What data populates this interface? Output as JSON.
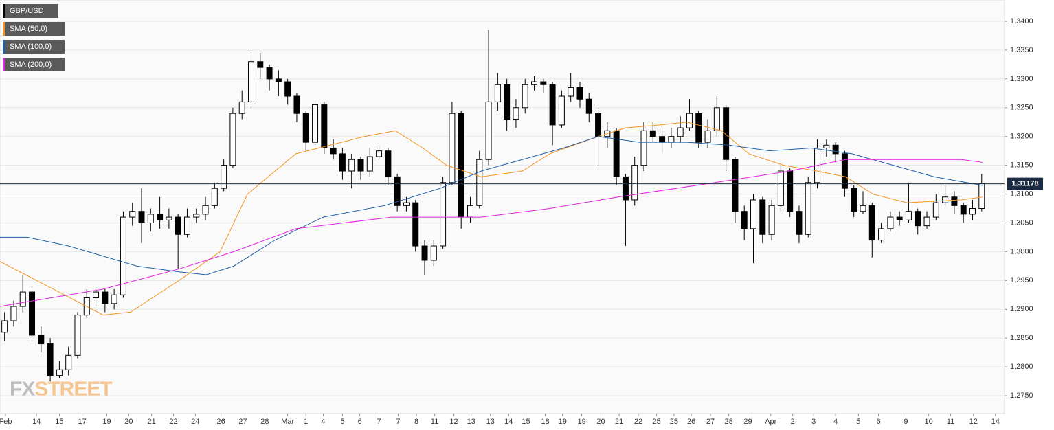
{
  "chart_data": {
    "type": "candlestick",
    "symbol": "GBP/USD",
    "symbol_color": "#000000",
    "open": [
      1.286,
      1.288,
      1.2905,
      1.293,
      1.2855,
      1.284,
      1.2785,
      1.2795,
      1.282,
      1.289,
      1.292,
      1.293,
      1.291,
      1.2925,
      1.306,
      1.307,
      1.305,
      1.3065,
      1.3055,
      1.306,
      1.303,
      1.306,
      1.3065,
      1.308,
      1.311,
      1.315,
      1.324,
      1.326,
      1.333,
      1.332,
      1.33,
      1.3295,
      1.327,
      1.324,
      1.319,
      1.3255,
      1.318,
      1.317,
      1.314,
      1.316,
      1.314,
      1.3165,
      1.3175,
      1.313,
      1.308,
      1.3085,
      1.301,
      1.2985,
      1.301,
      1.312,
      1.324,
      1.306,
      1.308,
      1.316,
      1.326,
      1.329,
      1.323,
      1.325,
      1.329,
      1.3295,
      1.329,
      1.322,
      1.327,
      1.3285,
      1.3265,
      1.324,
      1.32,
      1.321,
      1.313,
      1.309,
      1.315,
      1.321,
      1.32,
      1.319,
      1.32,
      1.3215,
      1.324,
      1.319,
      1.321,
      1.325,
      1.316,
      1.307,
      1.304,
      1.309,
      1.303,
      1.308,
      1.314,
      1.307,
      1.303,
      1.312,
      1.318,
      1.3185,
      1.317,
      1.311,
      1.307,
      1.308,
      1.302,
      1.304,
      1.306,
      1.3055,
      1.307,
      1.3045,
      1.306,
      1.3085,
      1.3095,
      1.308,
      1.3065,
      1.3075
    ],
    "high": [
      1.2895,
      1.2915,
      1.296,
      1.294,
      1.287,
      1.285,
      1.281,
      1.2835,
      1.2895,
      1.2935,
      1.294,
      1.2935,
      1.2935,
      1.307,
      1.3085,
      1.311,
      1.3075,
      1.3095,
      1.3075,
      1.3065,
      1.3075,
      1.3075,
      1.3095,
      1.312,
      1.316,
      1.325,
      1.328,
      1.335,
      1.3345,
      1.3325,
      1.3315,
      1.33,
      1.3275,
      1.3245,
      1.3265,
      1.326,
      1.3195,
      1.318,
      1.317,
      1.3165,
      1.318,
      1.3185,
      1.318,
      1.3135,
      1.3095,
      1.309,
      1.302,
      1.302,
      1.313,
      1.326,
      1.3245,
      1.3095,
      1.3175,
      1.3385,
      1.331,
      1.33,
      1.3265,
      1.33,
      1.3305,
      1.33,
      1.3295,
      1.328,
      1.331,
      1.3295,
      1.3275,
      1.325,
      1.3225,
      1.3215,
      1.3135,
      1.3165,
      1.3225,
      1.3225,
      1.321,
      1.3215,
      1.3235,
      1.3265,
      1.3245,
      1.323,
      1.327,
      1.3255,
      1.3165,
      1.308,
      1.31,
      1.3095,
      1.309,
      1.315,
      1.3145,
      1.308,
      1.313,
      1.3195,
      1.3195,
      1.319,
      1.3175,
      1.3115,
      1.3105,
      1.3085,
      1.305,
      1.307,
      1.307,
      1.312,
      1.3075,
      1.307,
      1.31,
      1.3115,
      1.3105,
      1.3085,
      1.309,
      1.3135
    ],
    "low": [
      1.2845,
      1.287,
      1.2895,
      1.2845,
      1.2825,
      1.2775,
      1.278,
      1.2785,
      1.2815,
      1.2885,
      1.2905,
      1.2895,
      1.29,
      1.292,
      1.3045,
      1.3015,
      1.3035,
      1.304,
      1.304,
      1.297,
      1.3025,
      1.305,
      1.3055,
      1.3075,
      1.3105,
      1.3145,
      1.323,
      1.3255,
      1.33,
      1.328,
      1.327,
      1.3255,
      1.3225,
      1.3175,
      1.3185,
      1.317,
      1.316,
      1.3125,
      1.311,
      1.3125,
      1.313,
      1.316,
      1.3115,
      1.307,
      1.307,
      1.3,
      1.296,
      1.2975,
      1.3005,
      1.3115,
      1.304,
      1.305,
      1.3075,
      1.315,
      1.3245,
      1.321,
      1.3215,
      1.324,
      1.328,
      1.3275,
      1.3185,
      1.3215,
      1.326,
      1.325,
      1.3225,
      1.315,
      1.318,
      1.3115,
      1.301,
      1.308,
      1.314,
      1.319,
      1.317,
      1.318,
      1.319,
      1.321,
      1.318,
      1.318,
      1.32,
      1.314,
      1.305,
      1.302,
      1.298,
      1.3015,
      1.302,
      1.307,
      1.306,
      1.3015,
      1.3025,
      1.311,
      1.3165,
      1.3155,
      1.3095,
      1.306,
      1.3065,
      1.299,
      1.3015,
      1.3035,
      1.3045,
      1.305,
      1.303,
      1.304,
      1.3055,
      1.308,
      1.3065,
      1.305,
      1.3055,
      1.307
    ],
    "close": [
      1.288,
      1.2905,
      1.293,
      1.2855,
      1.284,
      1.2785,
      1.2795,
      1.282,
      1.289,
      1.292,
      1.293,
      1.291,
      1.2925,
      1.306,
      1.307,
      1.305,
      1.3065,
      1.3055,
      1.306,
      1.303,
      1.306,
      1.3065,
      1.308,
      1.311,
      1.315,
      1.324,
      1.326,
      1.333,
      1.332,
      1.33,
      1.3295,
      1.327,
      1.324,
      1.319,
      1.3255,
      1.318,
      1.317,
      1.314,
      1.316,
      1.314,
      1.3165,
      1.3175,
      1.313,
      1.308,
      1.3085,
      1.301,
      1.2985,
      1.301,
      1.312,
      1.324,
      1.306,
      1.308,
      1.316,
      1.326,
      1.329,
      1.323,
      1.325,
      1.329,
      1.3295,
      1.329,
      1.322,
      1.327,
      1.3285,
      1.3265,
      1.324,
      1.32,
      1.321,
      1.313,
      1.309,
      1.315,
      1.321,
      1.32,
      1.319,
      1.32,
      1.3215,
      1.324,
      1.319,
      1.321,
      1.325,
      1.316,
      1.307,
      1.304,
      1.309,
      1.303,
      1.308,
      1.314,
      1.307,
      1.303,
      1.312,
      1.318,
      1.3185,
      1.317,
      1.311,
      1.307,
      1.308,
      1.302,
      1.304,
      1.306,
      1.3055,
      1.307,
      1.3045,
      1.306,
      1.3085,
      1.3095,
      1.308,
      1.3065,
      1.3075,
      1.3118
    ],
    "series": [
      {
        "name": "SMA (50,0)",
        "color": "#f7931e",
        "x": [
          0,
          11.3,
          14.3,
          19.6,
          24.1,
          27.1,
          32.4,
          39.9,
          43.3,
          46.3,
          48.9,
          52.7,
          57.2,
          60.2,
          65.5,
          68.5,
          72.2,
          75.2,
          79.0,
          82.0,
          85.8,
          89.5,
          92.6,
          95.6,
          99.3,
          105.3,
          107.6
        ],
        "values": [
          1.2983,
          1.289,
          1.2895,
          1.295,
          1.3,
          1.31,
          1.317,
          1.32,
          1.321,
          1.318,
          1.315,
          1.313,
          1.314,
          1.317,
          1.32,
          1.3215,
          1.322,
          1.3225,
          1.321,
          1.317,
          1.315,
          1.314,
          1.313,
          1.31,
          1.3085,
          1.309,
          1.3095
        ]
      },
      {
        "name": "SMA (100,0)",
        "color": "#1f5fa8",
        "x": [
          0,
          3.0,
          7.5,
          15.0,
          19.6,
          22.6,
          25.6,
          30.1,
          35.4,
          42.1,
          48.2,
          52.7,
          57.2,
          61.7,
          65.5,
          70.0,
          75.2,
          79.8,
          84.3,
          88.8,
          93.3,
          97.8,
          102.3,
          107.6
        ],
        "values": [
          1.3025,
          1.3025,
          1.301,
          1.2975,
          1.2965,
          1.296,
          1.2975,
          1.302,
          1.306,
          1.308,
          1.311,
          1.314,
          1.316,
          1.318,
          1.32,
          1.319,
          1.319,
          1.3185,
          1.3175,
          1.318,
          1.317,
          1.315,
          1.313,
          1.3115
        ]
      },
      {
        "name": "SMA (200,0)",
        "color": "#e020e0",
        "x": [
          0,
          11.3,
          19.6,
          25.6,
          32.4,
          42.9,
          52.7,
          60.2,
          67.7,
          78.3,
          86.5,
          92.6,
          105.3,
          107.6
        ],
        "values": [
          1.2905,
          1.2935,
          1.297,
          1.3,
          1.304,
          1.306,
          1.306,
          1.3075,
          1.3095,
          1.312,
          1.314,
          1.316,
          1.316,
          1.3155
        ]
      }
    ],
    "last_price": 1.31178,
    "xlim": [
      0,
      110
    ],
    "xticks": [
      {
        "value": 0.6,
        "label": "Feb"
      },
      {
        "value": 4.0,
        "label": "14"
      },
      {
        "value": 6.5,
        "label": "15"
      },
      {
        "value": 9.0,
        "label": "17"
      },
      {
        "value": 11.7,
        "label": "19"
      },
      {
        "value": 14.1,
        "label": "20"
      },
      {
        "value": 16.6,
        "label": "21"
      },
      {
        "value": 19.0,
        "label": "22"
      },
      {
        "value": 21.4,
        "label": "24"
      },
      {
        "value": 24.2,
        "label": "26"
      },
      {
        "value": 26.6,
        "label": "27"
      },
      {
        "value": 29.0,
        "label": "28"
      },
      {
        "value": 31.5,
        "label": "Mar"
      },
      {
        "value": 33.5,
        "label": "1"
      },
      {
        "value": 35.4,
        "label": "4"
      },
      {
        "value": 37.5,
        "label": "5"
      },
      {
        "value": 39.4,
        "label": "6"
      },
      {
        "value": 41.5,
        "label": "7"
      },
      {
        "value": 43.6,
        "label": "7"
      },
      {
        "value": 45.6,
        "label": "8"
      },
      {
        "value": 47.6,
        "label": "11"
      },
      {
        "value": 49.7,
        "label": "12"
      },
      {
        "value": 51.6,
        "label": "13"
      },
      {
        "value": 53.7,
        "label": "13"
      },
      {
        "value": 55.7,
        "label": "14"
      },
      {
        "value": 57.6,
        "label": "15"
      },
      {
        "value": 59.7,
        "label": "18"
      },
      {
        "value": 61.6,
        "label": "19"
      },
      {
        "value": 63.7,
        "label": "19"
      },
      {
        "value": 65.8,
        "label": "20"
      },
      {
        "value": 67.8,
        "label": "21"
      },
      {
        "value": 69.9,
        "label": "22"
      },
      {
        "value": 71.9,
        "label": "25"
      },
      {
        "value": 73.8,
        "label": "25"
      },
      {
        "value": 75.7,
        "label": "26"
      },
      {
        "value": 77.8,
        "label": "27"
      },
      {
        "value": 79.8,
        "label": "28"
      },
      {
        "value": 81.9,
        "label": "29"
      },
      {
        "value": 84.4,
        "label": "Apr"
      },
      {
        "value": 86.8,
        "label": "2"
      },
      {
        "value": 89.1,
        "label": "3"
      },
      {
        "value": 91.5,
        "label": "4"
      },
      {
        "value": 94.0,
        "label": "5"
      },
      {
        "value": 96.2,
        "label": "6"
      },
      {
        "value": 99.2,
        "label": "9"
      },
      {
        "value": 101.7,
        "label": "10"
      },
      {
        "value": 104.1,
        "label": "11"
      },
      {
        "value": 106.6,
        "label": "12"
      },
      {
        "value": 109.0,
        "label": "14"
      }
    ],
    "ylim": [
      1.2719,
      1.3437
    ],
    "yticks": [
      {
        "value": 1.275,
        "label": "1.2750"
      },
      {
        "value": 1.28,
        "label": "1.2800"
      },
      {
        "value": 1.285,
        "label": "1.2850"
      },
      {
        "value": 1.29,
        "label": "1.2900"
      },
      {
        "value": 1.295,
        "label": "1.2950"
      },
      {
        "value": 1.3,
        "label": "1.3000"
      },
      {
        "value": 1.305,
        "label": "1.3050"
      },
      {
        "value": 1.31,
        "label": "1.3100"
      },
      {
        "value": 1.315,
        "label": "1.3150"
      },
      {
        "value": 1.32,
        "label": "1.3200"
      },
      {
        "value": 1.325,
        "label": "1.3250"
      },
      {
        "value": 1.33,
        "label": "1.3300"
      },
      {
        "value": 1.335,
        "label": "1.3350"
      },
      {
        "value": 1.34,
        "label": "1.3400"
      }
    ],
    "grid": true,
    "watermark": [
      "FX",
      "STREET"
    ]
  }
}
